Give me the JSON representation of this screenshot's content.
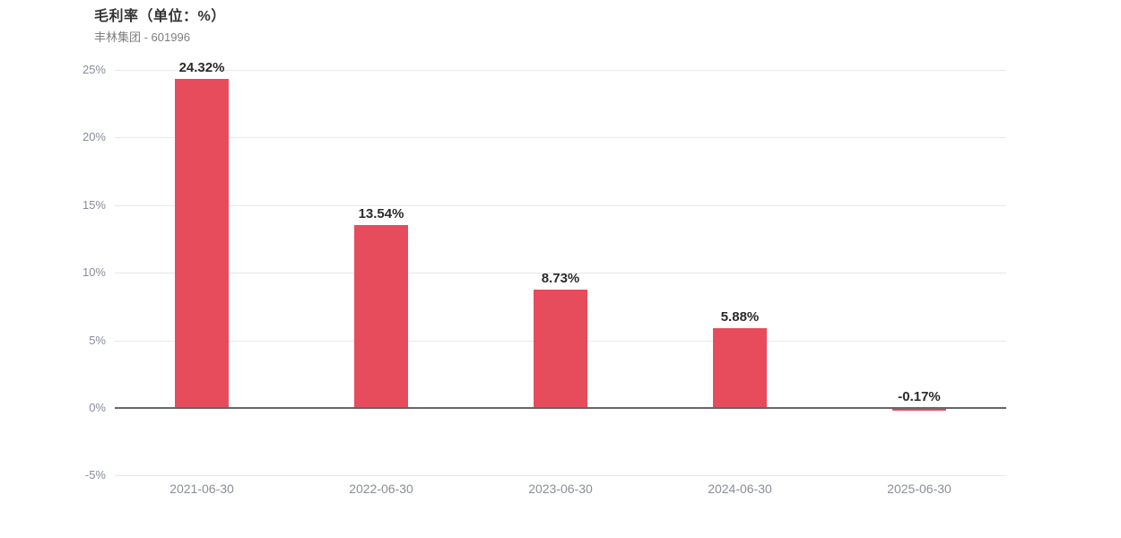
{
  "header": {
    "title": "毛利率（单位：%）",
    "subtitle": "丰林集团 - 601996"
  },
  "chart_data": {
    "type": "bar",
    "title": "毛利率（单位：%）",
    "subtitle": "丰林集团 - 601996",
    "categories": [
      "2021-06-30",
      "2022-06-30",
      "2023-06-30",
      "2024-06-30",
      "2025-06-30"
    ],
    "values": [
      24.32,
      13.54,
      8.73,
      5.88,
      -0.17
    ],
    "value_labels": [
      "24.32%",
      "13.54%",
      "8.73%",
      "5.88%",
      "-0.17%"
    ],
    "y_ticks": [
      25,
      20,
      15,
      10,
      5,
      0,
      -5
    ],
    "y_tick_labels": [
      "25%",
      "20%",
      "15%",
      "10%",
      "5%",
      "0%",
      "-5%"
    ],
    "ylim": [
      -5,
      25
    ],
    "xlabel": "",
    "ylabel": "",
    "grid": true,
    "legend_position": "none",
    "bar_color": "#e64c5c"
  },
  "colors": {
    "bar": "#e64c5c",
    "title_text": "#333333",
    "subtitle_text": "#7d7d7d",
    "axis_tick_text": "#878d9b",
    "gridline": "#e6e8ef",
    "zero_axis_line": "#63666c",
    "value_label_text": "#2b2b2b",
    "background": "#ffffff"
  }
}
